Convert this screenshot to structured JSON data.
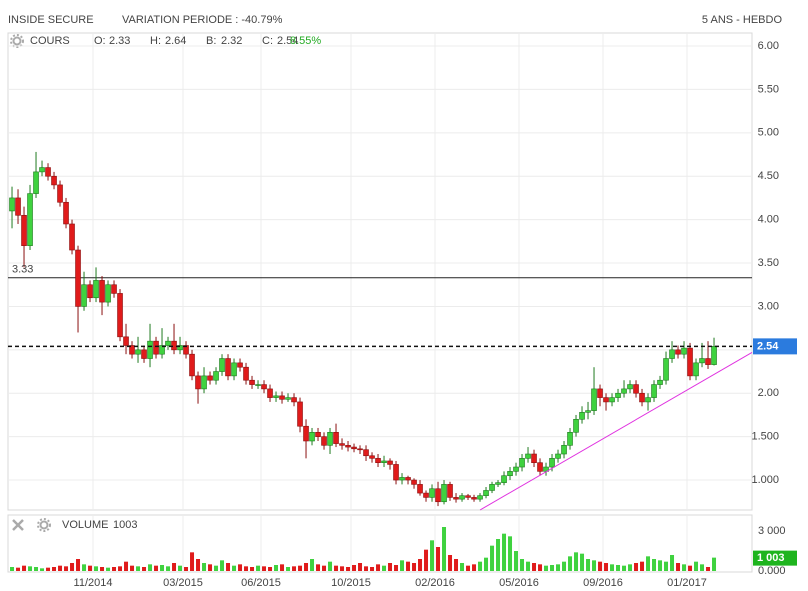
{
  "header": {
    "title": "INSIDE SECURE",
    "variation": "VARIATION PERIODE : -40.79%",
    "period": "5 ANS - HEBDO"
  },
  "chart_data": [
    {
      "type": "candlestick",
      "label": "COURS",
      "readout": [
        {
          "label": "O:",
          "value": 2.33
        },
        {
          "label": "H:",
          "value": 2.64
        },
        {
          "label": "B:",
          "value": 2.32
        },
        {
          "label": "C:",
          "value": 2.54
        }
      ],
      "change": {
        "value": 8.55,
        "label": "8.55%"
      },
      "change_color": "#22aa22",
      "xlim": [
        -0.67,
        123.33
      ],
      "ylim": [
        0.655,
        6.15
      ],
      "yticks": [
        {
          "value": 6,
          "label": "6.00"
        },
        {
          "value": 5.5,
          "label": "5.50"
        },
        {
          "value": 5,
          "label": "5.00"
        },
        {
          "value": 4.5,
          "label": "4.50"
        },
        {
          "value": 4,
          "label": "4.00"
        },
        {
          "value": 3.5,
          "label": "3.50"
        },
        {
          "value": 3,
          "label": "3.00"
        },
        {
          "value": 2.5,
          "label": "2.50"
        },
        {
          "value": 2,
          "label": "2.00"
        },
        {
          "value": 1.5,
          "label": "1.500"
        },
        {
          "value": 1,
          "label": "1.000"
        }
      ],
      "grid": true,
      "up_color": "#3fd23f",
      "down_color": "#e01b1b",
      "open": [
        4.1,
        4.25,
        4.05,
        3.7,
        4.3,
        4.55,
        4.6,
        4.5,
        4.4,
        4.2,
        3.95,
        3.65,
        3.0,
        3.25,
        3.1,
        3.3,
        3.05,
        3.25,
        3.15,
        2.65,
        2.55,
        2.45,
        2.5,
        2.4,
        2.6,
        2.45,
        2.55,
        2.6,
        2.5,
        2.55,
        2.45,
        2.2,
        2.05,
        2.2,
        2.15,
        2.25,
        2.4,
        2.2,
        2.35,
        2.3,
        2.15,
        2.1,
        2.1,
        2.05,
        1.95,
        1.97,
        1.93,
        1.95,
        1.9,
        1.62,
        1.45,
        1.55,
        1.5,
        1.4,
        1.55,
        1.42,
        1.4,
        1.38,
        1.36,
        1.35,
        1.28,
        1.25,
        1.2,
        1.22,
        1.18,
        1.0,
        1.03,
        1.0,
        0.95,
        0.85,
        0.8,
        0.9,
        0.75,
        0.95,
        0.8,
        0.78,
        0.82,
        0.8,
        0.78,
        0.82,
        0.88,
        0.95,
        0.97,
        1.05,
        1.1,
        1.15,
        1.25,
        1.3,
        1.2,
        1.1,
        1.15,
        1.25,
        1.3,
        1.4,
        1.55,
        1.7,
        1.78,
        1.8,
        2.05,
        1.95,
        1.9,
        1.95,
        2.0,
        2.05,
        2.1,
        2.0,
        1.9,
        1.95,
        2.1,
        2.15,
        2.4,
        2.5,
        2.45,
        2.52,
        2.2,
        2.35,
        2.4,
        2.33
      ],
      "high": [
        4.38,
        4.35,
        4.15,
        4.4,
        4.78,
        4.68,
        4.65,
        4.55,
        4.45,
        4.25,
        4.0,
        3.7,
        3.4,
        3.3,
        3.45,
        3.35,
        3.3,
        3.3,
        3.2,
        2.8,
        2.6,
        2.65,
        2.55,
        2.8,
        2.65,
        2.75,
        2.65,
        2.8,
        2.65,
        2.6,
        2.5,
        2.25,
        2.3,
        2.25,
        2.3,
        2.45,
        2.45,
        2.4,
        2.4,
        2.35,
        2.2,
        2.15,
        2.15,
        2.1,
        2.02,
        2.02,
        2.0,
        2.0,
        1.95,
        1.7,
        1.6,
        1.6,
        1.55,
        1.6,
        1.65,
        1.48,
        1.45,
        1.42,
        1.4,
        1.4,
        1.32,
        1.3,
        1.28,
        1.25,
        1.22,
        1.08,
        1.05,
        1.02,
        1.0,
        0.88,
        0.95,
        0.98,
        1.0,
        0.98,
        0.85,
        0.85,
        0.84,
        0.83,
        0.85,
        0.92,
        0.98,
        1.0,
        1.1,
        1.15,
        1.2,
        1.3,
        1.38,
        1.35,
        1.25,
        1.2,
        1.3,
        1.35,
        1.45,
        1.6,
        1.75,
        1.85,
        1.9,
        2.3,
        2.1,
        2.0,
        2.0,
        2.05,
        2.15,
        2.15,
        2.15,
        2.05,
        2.0,
        2.15,
        2.2,
        2.48,
        2.6,
        2.55,
        2.6,
        2.58,
        2.4,
        2.58,
        2.6,
        2.64
      ],
      "low": [
        3.9,
        3.95,
        3.45,
        3.65,
        4.25,
        4.5,
        4.45,
        4.35,
        4.15,
        3.9,
        3.6,
        2.7,
        2.95,
        3.05,
        3.05,
        2.9,
        3.0,
        3.1,
        2.6,
        2.45,
        2.4,
        2.35,
        2.35,
        2.3,
        2.4,
        2.4,
        2.5,
        2.45,
        2.45,
        2.4,
        2.15,
        1.88,
        2.0,
        2.1,
        2.1,
        2.2,
        2.15,
        2.15,
        2.25,
        2.1,
        2.05,
        2.05,
        2.0,
        1.9,
        1.9,
        1.88,
        1.9,
        1.85,
        1.55,
        1.25,
        1.4,
        1.45,
        1.35,
        1.3,
        1.38,
        1.35,
        1.33,
        1.32,
        1.3,
        1.22,
        1.2,
        1.15,
        1.15,
        1.12,
        0.95,
        0.95,
        0.95,
        0.9,
        0.82,
        0.75,
        0.75,
        0.7,
        0.72,
        0.76,
        0.74,
        0.75,
        0.77,
        0.75,
        0.75,
        0.79,
        0.85,
        0.92,
        0.94,
        1.0,
        1.05,
        1.1,
        1.2,
        1.15,
        1.05,
        1.05,
        1.1,
        1.2,
        1.25,
        1.35,
        1.5,
        1.65,
        1.7,
        1.75,
        1.85,
        1.8,
        1.85,
        1.9,
        1.95,
        2.0,
        1.95,
        1.85,
        1.8,
        1.9,
        2.05,
        2.1,
        2.35,
        2.4,
        2.4,
        2.15,
        2.15,
        2.3,
        2.28,
        2.32
      ],
      "close": [
        4.25,
        4.05,
        3.7,
        4.3,
        4.55,
        4.6,
        4.5,
        4.4,
        4.2,
        3.95,
        3.65,
        3.0,
        3.25,
        3.1,
        3.3,
        3.05,
        3.25,
        3.15,
        2.65,
        2.55,
        2.45,
        2.5,
        2.4,
        2.6,
        2.45,
        2.55,
        2.6,
        2.5,
        2.55,
        2.45,
        2.2,
        2.05,
        2.2,
        2.15,
        2.25,
        2.4,
        2.2,
        2.35,
        2.3,
        2.15,
        2.1,
        2.1,
        2.05,
        1.95,
        1.97,
        1.93,
        1.95,
        1.9,
        1.62,
        1.45,
        1.55,
        1.5,
        1.4,
        1.55,
        1.42,
        1.4,
        1.38,
        1.36,
        1.35,
        1.28,
        1.25,
        1.2,
        1.22,
        1.18,
        1.0,
        1.03,
        1.0,
        0.95,
        0.85,
        0.8,
        0.9,
        0.75,
        0.95,
        0.8,
        0.78,
        0.82,
        0.8,
        0.78,
        0.82,
        0.88,
        0.95,
        0.97,
        1.05,
        1.1,
        1.15,
        1.25,
        1.3,
        1.2,
        1.1,
        1.15,
        1.25,
        1.3,
        1.4,
        1.55,
        1.7,
        1.78,
        1.8,
        2.05,
        1.95,
        1.9,
        1.95,
        2.0,
        2.05,
        2.1,
        2.0,
        1.9,
        1.95,
        2.1,
        2.15,
        2.4,
        2.5,
        2.45,
        2.52,
        2.2,
        2.35,
        2.4,
        2.33,
        2.54
      ],
      "hline": 3.33,
      "last_price": 2.54,
      "last_color": "#2b7bde",
      "trendline": {
        "x": [
          78,
          123.33
        ],
        "y": [
          0.655,
          2.47
        ],
        "color": "#e033e0"
      }
    },
    {
      "type": "volume",
      "label": "VOLUME",
      "readout": 1003,
      "badge": {
        "value": 1003,
        "label": "1 003"
      },
      "badge_color": "#1eb41e",
      "xlim": [
        -0.67,
        123.33
      ],
      "ylim": [
        0,
        4200
      ],
      "xticks": [
        {
          "value": 13.5,
          "label": "11/2014"
        },
        {
          "value": 28.5,
          "label": "03/2015"
        },
        {
          "value": 41.5,
          "label": "06/2015"
        },
        {
          "value": 56.5,
          "label": "10/2015"
        },
        {
          "value": 70.5,
          "label": "02/2016"
        },
        {
          "value": 84.5,
          "label": "05/2016"
        },
        {
          "value": 98.5,
          "label": "09/2016"
        },
        {
          "value": 112.5,
          "label": "01/2017"
        }
      ],
      "yticks": [
        {
          "value": 3000,
          "label": "3 000"
        },
        {
          "value": 0,
          "label": "0.000"
        }
      ],
      "values": [
        300,
        250,
        400,
        350,
        300,
        200,
        250,
        300,
        400,
        350,
        600,
        900,
        500,
        400,
        350,
        300,
        250,
        300,
        350,
        700,
        400,
        350,
        300,
        500,
        400,
        450,
        350,
        600,
        400,
        300,
        1400,
        900,
        600,
        500,
        400,
        800,
        600,
        400,
        500,
        350,
        300,
        400,
        350,
        300,
        450,
        500,
        300,
        350,
        400,
        600,
        900,
        500,
        400,
        700,
        400,
        350,
        300,
        450,
        600,
        350,
        300,
        500,
        400,
        600,
        450,
        800,
        700,
        600,
        900,
        1600,
        2300,
        1800,
        3300,
        1200,
        900,
        600,
        400,
        500,
        700,
        1000,
        1900,
        2400,
        2800,
        2600,
        1500,
        900,
        700,
        600,
        500,
        400,
        450,
        500,
        700,
        1100,
        1400,
        1300,
        900,
        800,
        700,
        600,
        500,
        450,
        400,
        500,
        600,
        700,
        1100,
        900,
        800,
        700,
        1200,
        600,
        500,
        400,
        700,
        500,
        300,
        1003
      ]
    }
  ]
}
